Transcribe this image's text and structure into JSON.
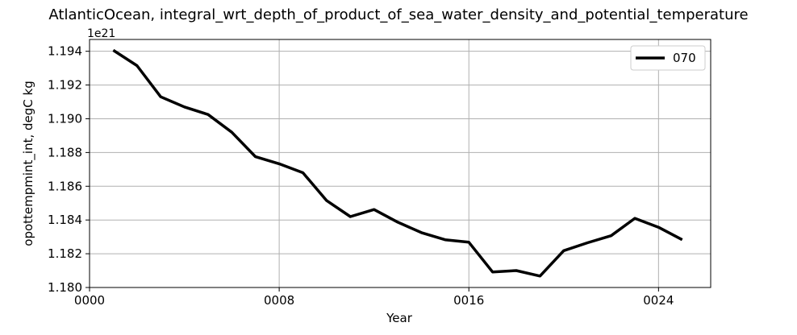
{
  "chart_data": {
    "type": "line",
    "title": "AtlanticOcean, integral_wrt_depth_of_product_of_sea_water_density_and_potential_temperature",
    "xlabel": "Year",
    "ylabel": "opottempmint_int, degC kg",
    "y_offset_label": "1e21",
    "xlim": [
      0,
      26.2
    ],
    "ylim": [
      1.18,
      1.1947
    ],
    "xticks": [
      {
        "value": 0,
        "label": "0000"
      },
      {
        "value": 8,
        "label": "0008"
      },
      {
        "value": 16,
        "label": "0016"
      },
      {
        "value": 24,
        "label": "0024"
      }
    ],
    "yticks": [
      {
        "value": 1.18,
        "label": "1.180"
      },
      {
        "value": 1.182,
        "label": "1.182"
      },
      {
        "value": 1.184,
        "label": "1.184"
      },
      {
        "value": 1.186,
        "label": "1.186"
      },
      {
        "value": 1.188,
        "label": "1.188"
      },
      {
        "value": 1.19,
        "label": "1.190"
      },
      {
        "value": 1.192,
        "label": "1.192"
      },
      {
        "value": 1.194,
        "label": "1.194"
      }
    ],
    "grid": true,
    "legend_position": "top-right",
    "series": [
      {
        "name": "070",
        "color": "#000000",
        "x": [
          1,
          2,
          3,
          4,
          5,
          6,
          7,
          8,
          9,
          10,
          11,
          12,
          13,
          14,
          15,
          16,
          17,
          18,
          19,
          20,
          21,
          22,
          23,
          24,
          25
        ],
        "y": [
          1.19406,
          1.19315,
          1.1913,
          1.1907,
          1.19025,
          1.1892,
          1.18775,
          1.18733,
          1.1868,
          1.18515,
          1.1842,
          1.18462,
          1.18387,
          1.18325,
          1.18283,
          1.18268,
          1.18092,
          1.181,
          1.18068,
          1.18218,
          1.18265,
          1.18307,
          1.1841,
          1.18357,
          1.18283
        ]
      }
    ]
  }
}
